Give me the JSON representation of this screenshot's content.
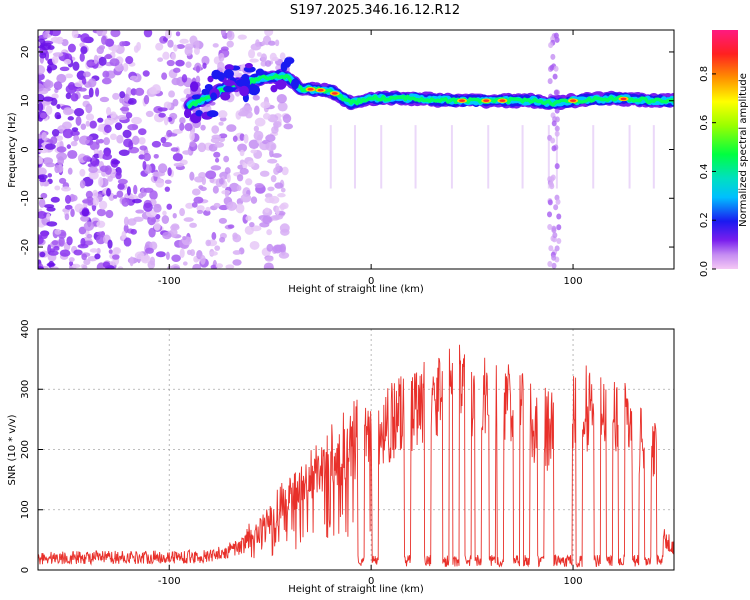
{
  "title": "S197.2025.346.16.12.R12",
  "chart_data": [
    {
      "type": "heatmap",
      "name": "spectrogram",
      "xlabel": "Height of straight line (km)",
      "ylabel": "Frequency (Hz)",
      "xlim": [
        -165,
        150
      ],
      "ylim": [
        -24.5,
        24.5
      ],
      "xticks": [
        -100,
        0,
        100
      ],
      "yticks": [
        20,
        10,
        0,
        -10,
        -20
      ],
      "colorbar": {
        "label": "Normalized spectral amplitude",
        "range": [
          0.0,
          0.98
        ],
        "ticks": [
          0.0,
          0.2,
          0.4,
          0.6,
          0.8
        ]
      },
      "ridge": {
        "description": "dominant frequency track",
        "points": [
          [
            -90,
            9
          ],
          [
            -80,
            11
          ],
          [
            -70,
            13
          ],
          [
            -60,
            14
          ],
          [
            -50,
            15
          ],
          [
            -42,
            15
          ],
          [
            -35,
            12.5
          ],
          [
            -20,
            12
          ],
          [
            -10,
            9.5
          ],
          [
            0,
            10.5
          ],
          [
            20,
            10.5
          ],
          [
            40,
            10
          ],
          [
            60,
            10
          ],
          [
            80,
            10
          ],
          [
            90,
            9.5
          ],
          [
            100,
            10
          ],
          [
            120,
            10.5
          ],
          [
            140,
            10
          ]
        ]
      }
    },
    {
      "type": "line",
      "name": "snr",
      "xlabel": "Height of straight line (km)",
      "ylabel": "SNR (10 * v/v)",
      "xlim": [
        -165,
        150
      ],
      "ylim": [
        0,
        400
      ],
      "xticks": [
        -100,
        0,
        100
      ],
      "yticks": [
        0,
        100,
        200,
        300,
        400
      ],
      "series": [
        {
          "name": "SNR",
          "color": "#e8302a",
          "envelope": [
            [
              -165,
              20
            ],
            [
              -80,
              22
            ],
            [
              -70,
              40
            ],
            [
              -60,
              70
            ],
            [
              -50,
              110
            ],
            [
              -40,
              160
            ],
            [
              -30,
              200
            ],
            [
              -20,
              240
            ],
            [
              -10,
              280
            ],
            [
              0,
              280
            ],
            [
              10,
              310
            ],
            [
              20,
              330
            ],
            [
              30,
              355
            ],
            [
              40,
              380
            ],
            [
              50,
              360
            ],
            [
              60,
              350
            ],
            [
              70,
              340
            ],
            [
              80,
              320
            ],
            [
              90,
              300
            ],
            [
              100,
              320
            ],
            [
              110,
              350
            ],
            [
              120,
              330
            ],
            [
              130,
              300
            ],
            [
              140,
              270
            ],
            [
              145,
              70
            ],
            [
              150,
              40
            ]
          ],
          "dropouts": [
            -5,
            2,
            18,
            28,
            37,
            42,
            48,
            53,
            60,
            64,
            72,
            77,
            84,
            92,
            95,
            98,
            103,
            112,
            118,
            124,
            131,
            137,
            143
          ]
        }
      ]
    }
  ]
}
